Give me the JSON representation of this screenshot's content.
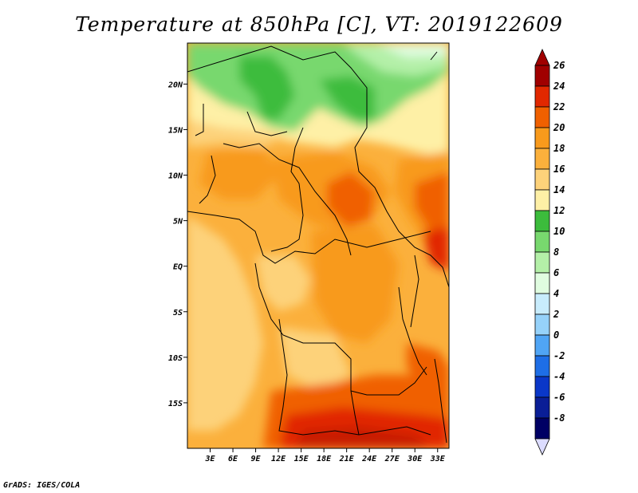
{
  "title": "Temperature at 850hPa [C], VT: 2019122609",
  "footer": "GrADS: IGES/COLA",
  "map": {
    "region": "Central Africa",
    "lon_range": [
      0,
      34.5
    ],
    "lat_range": [
      -20,
      24.5
    ],
    "lat_ticks": [
      {
        "value": 20,
        "label": "20N"
      },
      {
        "value": 15,
        "label": "15N"
      },
      {
        "value": 10,
        "label": "10N"
      },
      {
        "value": 5,
        "label": "5N"
      },
      {
        "value": 0,
        "label": "EQ"
      },
      {
        "value": -5,
        "label": "5S"
      },
      {
        "value": -10,
        "label": "10S"
      },
      {
        "value": -15,
        "label": "15S"
      }
    ],
    "lon_ticks": [
      {
        "value": 3,
        "label": "3E"
      },
      {
        "value": 6,
        "label": "6E"
      },
      {
        "value": 9,
        "label": "9E"
      },
      {
        "value": 12,
        "label": "12E"
      },
      {
        "value": 15,
        "label": "15E"
      },
      {
        "value": 18,
        "label": "18E"
      },
      {
        "value": 21,
        "label": "21E"
      },
      {
        "value": 24,
        "label": "24E"
      },
      {
        "value": 27,
        "label": "27E"
      },
      {
        "value": 30,
        "label": "30E"
      },
      {
        "value": 33,
        "label": "33E"
      }
    ]
  },
  "colorbar": {
    "levels": [
      {
        "label": "26",
        "color": "#a00000"
      },
      {
        "label": "24",
        "color": "#e12800"
      },
      {
        "label": "22",
        "color": "#f06000"
      },
      {
        "label": "20",
        "color": "#f89a1c"
      },
      {
        "label": "18",
        "color": "#fbb03c"
      },
      {
        "label": "16",
        "color": "#fdd27a"
      },
      {
        "label": "14",
        "color": "#fef0a6"
      },
      {
        "label": "12",
        "color": "#3cbc3c"
      },
      {
        "label": "10",
        "color": "#78d86e"
      },
      {
        "label": "8",
        "color": "#b4f0a8"
      },
      {
        "label": "6",
        "color": "#e0fce0"
      },
      {
        "label": "4",
        "color": "#c8ecfc"
      },
      {
        "label": "2",
        "color": "#96d2fa"
      },
      {
        "label": "0",
        "color": "#50a5f5"
      },
      {
        "label": "-2",
        "color": "#1e6ee6"
      },
      {
        "label": "-4",
        "color": "#0a37c8"
      },
      {
        "label": "-6",
        "color": "#0a1e96"
      },
      {
        "label": "-8",
        "color": "#000064"
      }
    ],
    "under_color": "#dcdcff"
  }
}
